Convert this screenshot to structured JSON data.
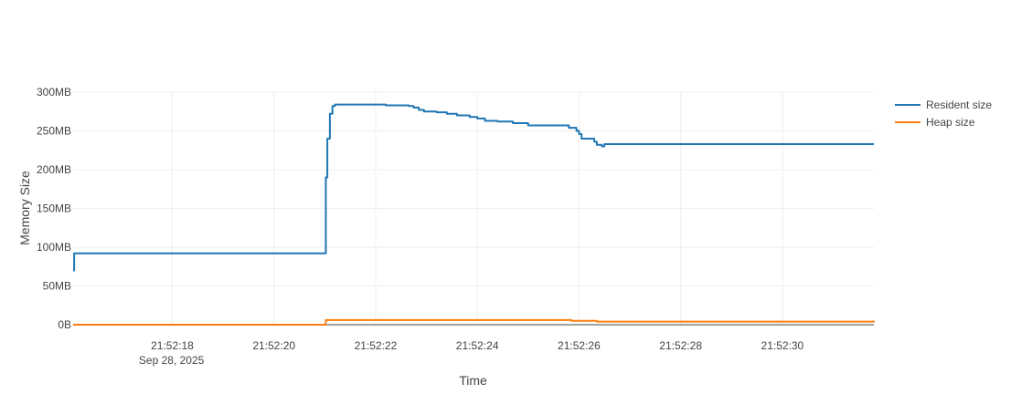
{
  "chart_data": {
    "type": "line",
    "title": "",
    "xlabel": "Time",
    "ylabel": "Memory Size",
    "x_date_annotation": "Sep 28, 2025",
    "xlim": [
      "21:52:16.05",
      "21:52:31.80"
    ],
    "ylim_mb": [
      0,
      300
    ],
    "x_ticks": [
      "21:52:18",
      "21:52:20",
      "21:52:22",
      "21:52:24",
      "21:52:26",
      "21:52:28",
      "21:52:30"
    ],
    "y_ticks": [
      {
        "value": 0,
        "label": "0B"
      },
      {
        "value": 50,
        "label": "50MB"
      },
      {
        "value": 100,
        "label": "100MB"
      },
      {
        "value": 150,
        "label": "150MB"
      },
      {
        "value": 200,
        "label": "200MB"
      },
      {
        "value": 250,
        "label": "250MB"
      },
      {
        "value": 300,
        "label": "300MB"
      }
    ],
    "grid": true,
    "legend_position": "top-right",
    "series": [
      {
        "name": "Resident size",
        "color": "#1f77b4",
        "shape": "hv",
        "points": [
          [
            "21:52:16.05",
            70
          ],
          [
            "21:52:16.07",
            92
          ],
          [
            "21:52:21.00",
            92
          ],
          [
            "21:52:21.02",
            190
          ],
          [
            "21:52:21.05",
            240
          ],
          [
            "21:52:21.10",
            272
          ],
          [
            "21:52:21.15",
            282
          ],
          [
            "21:52:21.20",
            284
          ],
          [
            "21:52:22.00",
            284
          ],
          [
            "21:52:22.20",
            283
          ],
          [
            "21:52:22.65",
            282
          ],
          [
            "21:52:22.75",
            280
          ],
          [
            "21:52:22.85",
            277
          ],
          [
            "21:52:22.95",
            275
          ],
          [
            "21:52:23.20",
            274
          ],
          [
            "21:52:23.40",
            272
          ],
          [
            "21:52:23.60",
            270
          ],
          [
            "21:52:23.85",
            268
          ],
          [
            "21:52:24.00",
            266
          ],
          [
            "21:52:24.15",
            263
          ],
          [
            "21:52:24.40",
            262
          ],
          [
            "21:52:24.70",
            260
          ],
          [
            "21:52:25.00",
            257
          ],
          [
            "21:52:25.70",
            257
          ],
          [
            "21:52:25.80",
            254
          ],
          [
            "21:52:25.95",
            250
          ],
          [
            "21:52:26.00",
            246
          ],
          [
            "21:52:26.05",
            240
          ],
          [
            "21:52:26.30",
            236
          ],
          [
            "21:52:26.35",
            232
          ],
          [
            "21:52:26.45",
            230
          ],
          [
            "21:52:26.50",
            233
          ],
          [
            "21:52:31.80",
            233
          ]
        ]
      },
      {
        "name": "Heap size",
        "color": "#ff7f0e",
        "shape": "hv",
        "points": [
          [
            "21:52:16.05",
            0
          ],
          [
            "21:52:21.00",
            0
          ],
          [
            "21:52:21.02",
            6
          ],
          [
            "21:52:25.80",
            6
          ],
          [
            "21:52:25.85",
            5
          ],
          [
            "21:52:26.30",
            5
          ],
          [
            "21:52:26.35",
            4
          ],
          [
            "21:52:31.80",
            3
          ]
        ]
      }
    ]
  }
}
